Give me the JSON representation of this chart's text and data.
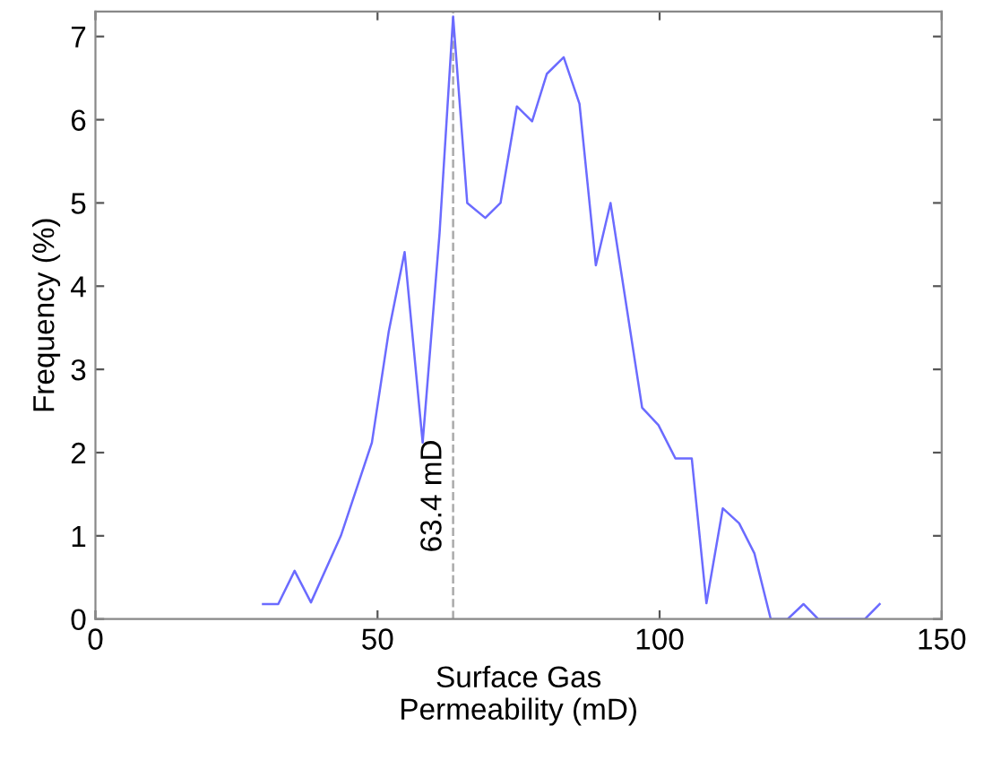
{
  "chart_data": {
    "type": "line",
    "xlabel": "Surface Gas\nPermeability (mD)",
    "ylabel": "Frequency (%)",
    "x": [
      29.7,
      32.4,
      35.3,
      38.2,
      43.5,
      49.0,
      52.0,
      54.8,
      58.0,
      61.0,
      63.4,
      65.9,
      69.1,
      71.8,
      74.7,
      77.4,
      80.0,
      83.0,
      85.8,
      88.7,
      91.3,
      96.9,
      99.8,
      102.8,
      105.7,
      108.3,
      111.2,
      114.1,
      116.8,
      119.7,
      122.7,
      125.5,
      128.1,
      131.0,
      134.0,
      136.4,
      139.0
    ],
    "series": [
      {
        "color": "#6b6bff",
        "values": [
          0.18,
          0.18,
          0.58,
          0.2,
          1.0,
          2.12,
          3.46,
          4.41,
          2.12,
          4.64,
          7.24,
          5.0,
          4.82,
          5.0,
          6.16,
          5.98,
          6.55,
          6.75,
          6.19,
          4.25,
          5.0,
          2.54,
          2.33,
          1.93,
          1.93,
          0.19,
          1.33,
          1.15,
          0.79,
          0,
          0,
          0.18,
          0,
          0,
          0,
          0,
          0.18
        ]
      }
    ],
    "xlim": [
      0,
      150
    ],
    "xticks": [
      0,
      50,
      100,
      150
    ],
    "ylim": [
      0,
      7.3
    ],
    "yticks": [
      0,
      1,
      2,
      3,
      4,
      5,
      6,
      7
    ],
    "ref_lines": [
      {
        "axis": "x",
        "value": 63.4,
        "label": "63.4 mD",
        "color": "#aaaaaa",
        "line_style": "dashed"
      }
    ],
    "grid": false,
    "marker": "none",
    "line_style": "solid"
  }
}
